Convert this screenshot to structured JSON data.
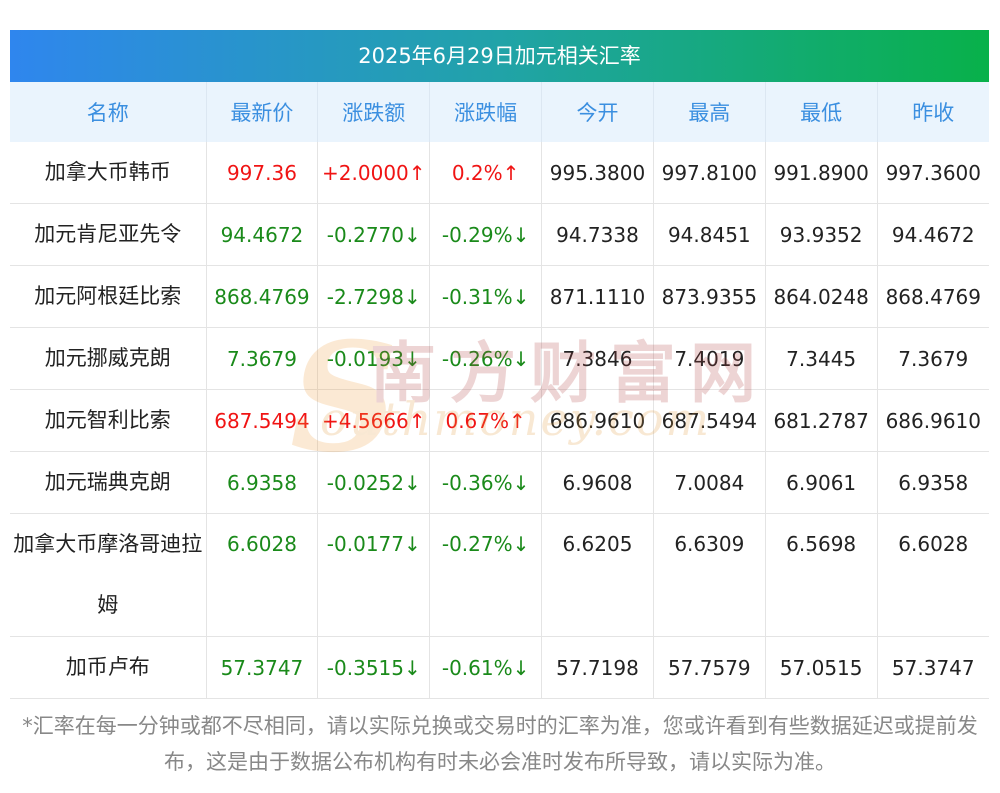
{
  "title": "2025年6月29日加元相关汇率",
  "headers": [
    "名称",
    "最新价",
    "涨跌额",
    "涨跌幅",
    "今开",
    "最高",
    "最低",
    "昨收"
  ],
  "rows": [
    {
      "name": "加拿大币韩币",
      "latest": "997.36",
      "change": "+2.0000↑",
      "pct": "0.2%↑",
      "open": "995.3800",
      "high": "997.8100",
      "low": "991.8900",
      "prev": "997.3600",
      "dir": "up"
    },
    {
      "name": "加元肯尼亚先令",
      "latest": "94.4672",
      "change": "-0.2770↓",
      "pct": "-0.29%↓",
      "open": "94.7338",
      "high": "94.8451",
      "low": "93.9352",
      "prev": "94.4672",
      "dir": "down"
    },
    {
      "name": "加元阿根廷比索",
      "latest": "868.4769",
      "change": "-2.7298↓",
      "pct": "-0.31%↓",
      "open": "871.1110",
      "high": "873.9355",
      "low": "864.0248",
      "prev": "868.4769",
      "dir": "down"
    },
    {
      "name": "加元挪威克朗",
      "latest": "7.3679",
      "change": "-0.0193↓",
      "pct": "-0.26%↓",
      "open": "7.3846",
      "high": "7.4019",
      "low": "7.3445",
      "prev": "7.3679",
      "dir": "down"
    },
    {
      "name": "加元智利比索",
      "latest": "687.5494",
      "change": "+4.5666↑",
      "pct": "0.67%↑",
      "open": "686.9610",
      "high": "687.5494",
      "low": "681.2787",
      "prev": "686.9610",
      "dir": "up"
    },
    {
      "name": "加元瑞典克朗",
      "latest": "6.9358",
      "change": "-0.0252↓",
      "pct": "-0.36%↓",
      "open": "6.9608",
      "high": "7.0084",
      "low": "6.9061",
      "prev": "6.9358",
      "dir": "down"
    },
    {
      "name": "加拿大币摩洛哥迪拉姆",
      "latest": "6.6028",
      "change": "-0.0177↓",
      "pct": "-0.27%↓",
      "open": "6.6205",
      "high": "6.6309",
      "low": "6.5698",
      "prev": "6.6028",
      "dir": "down",
      "tall": true
    },
    {
      "name": "加币卢布",
      "latest": "57.3747",
      "change": "-0.3515↓",
      "pct": "-0.61%↓",
      "open": "57.7198",
      "high": "57.7579",
      "low": "57.0515",
      "prev": "57.3747",
      "dir": "down"
    }
  ],
  "watermark": {
    "cn": "南方财富网",
    "en": "outhmoney.com",
    "s": "S"
  },
  "footnote": "*汇率在每一分钟或都不尽相同，请以实际兑换或交易时的汇率为准，您或许看到有些数据延迟或提前发布，这是由于数据公布机构有时未必会准时发布所导致，请以实际为准。",
  "colors": {
    "up": "#f01414",
    "down": "#1a8a1a",
    "header_text": "#3b8fe0",
    "header_bg": "#eaf4fd",
    "title_start": "#2f86ee",
    "title_end": "#08b14a"
  }
}
